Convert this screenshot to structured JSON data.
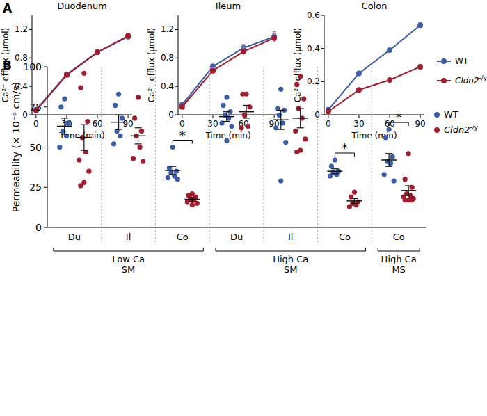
{
  "panel_labels": [
    "A",
    "B"
  ],
  "chart_data": [
    {
      "type": "line",
      "title": "Duodenum",
      "x_label": "Time (min)",
      "y_label": "Ca²⁺ efflux (µmol)",
      "x": [
        0,
        30,
        60,
        90
      ],
      "xlim": [
        -4,
        94
      ],
      "xticks": [
        0,
        30,
        60,
        90
      ],
      "ylim": [
        0,
        1.4
      ],
      "yticks": [
        0,
        0.4,
        0.8,
        1.2
      ],
      "series": [
        {
          "name": "WT",
          "color": "#3b5ca8",
          "marker": "circle",
          "values": [
            0.07,
            0.57,
            0.88,
            1.1
          ],
          "errors": [
            0.02,
            0.03,
            0.03,
            0.04
          ]
        },
        {
          "name": "Cldn2-/y",
          "color": "#a11d2e",
          "marker": "circle",
          "values": [
            0.06,
            0.56,
            0.88,
            1.11
          ],
          "errors": [
            0.02,
            0.03,
            0.04,
            0.04
          ]
        }
      ]
    },
    {
      "type": "line",
      "title": "Ileum",
      "x_label": "Time (min)",
      "y_label": "Ca²⁺ efflux (µmol)",
      "x": [
        0,
        30,
        60,
        90
      ],
      "xlim": [
        -4,
        94
      ],
      "xticks": [
        0,
        30,
        60,
        90
      ],
      "ylim": [
        0,
        1.4
      ],
      "yticks": [
        0,
        0.4,
        0.8,
        1.2
      ],
      "series": [
        {
          "name": "WT",
          "color": "#3b5ca8",
          "marker": "circle",
          "values": [
            0.14,
            0.68,
            0.94,
            1.1
          ],
          "errors": [
            0.02,
            0.05,
            0.05,
            0.07
          ]
        },
        {
          "name": "Cldn2-/y",
          "color": "#a11d2e",
          "marker": "circle",
          "values": [
            0.11,
            0.62,
            0.89,
            1.08
          ],
          "errors": [
            0.02,
            0.04,
            0.06,
            0.06
          ]
        }
      ]
    },
    {
      "type": "line",
      "title": "Colon",
      "x_label": "Time (min)",
      "y_label": "Ca²⁺ efflux (µmol)",
      "x": [
        0,
        30,
        60,
        90
      ],
      "xlim": [
        -4,
        94
      ],
      "xticks": [
        0,
        30,
        60,
        90
      ],
      "ylim": [
        0,
        0.6
      ],
      "yticks": [
        0,
        0.2,
        0.4,
        0.6
      ],
      "legend": "right",
      "series": [
        {
          "name": "WT",
          "color": "#3b5ca8",
          "marker": "circle",
          "values": [
            0.03,
            0.25,
            0.39,
            0.54
          ],
          "errors": [
            0.005,
            0.008,
            0.01,
            0.015
          ]
        },
        {
          "name": "Cldn2-/y",
          "color": "#a11d2e",
          "marker": "circle",
          "values": [
            0.02,
            0.15,
            0.21,
            0.29
          ],
          "errors": [
            0.005,
            0.008,
            0.01,
            0.012
          ]
        }
      ]
    },
    {
      "type": "dot_plot",
      "y_label": "Permeability (× 10⁻⁶ cm/s)",
      "categories": [
        "Du",
        "Il",
        "Co",
        "Du",
        "Il",
        "Co",
        "Co"
      ],
      "category_groups": [
        {
          "label": [
            "Low Ca",
            "SM"
          ],
          "from": 0,
          "to": 2
        },
        {
          "label": [
            "High Ca",
            "SM"
          ],
          "from": 3,
          "to": 5
        },
        {
          "label": [
            "High Ca",
            "MS"
          ],
          "from": 6,
          "to": 6
        }
      ],
      "ylim": [
        0,
        100
      ],
      "yticks": [
        0,
        25,
        50,
        75,
        100
      ],
      "legend": "right",
      "annotations": [
        {
          "category": 2,
          "text": "*"
        },
        {
          "category": 5,
          "text": "*"
        },
        {
          "category": 6,
          "text": "*"
        }
      ],
      "series": [
        {
          "name": "WT",
          "color": "#3b5ca8",
          "marker": "circle",
          "points": [
            [
              80,
              75,
              65,
              60,
              57,
              50
            ],
            [
              83,
              76,
              68,
              60,
              57,
              52
            ],
            [
              50,
              37,
              35,
              34,
              32,
              31,
              30
            ],
            [
              81,
              76,
              72,
              70,
              68,
              65,
              63,
              54
            ],
            [
              86,
              74,
              73,
              70,
              65,
              62,
              53,
              29
            ],
            [
              42,
              38,
              35,
              34,
              33,
              32
            ],
            [
              61,
              56,
              44,
              41,
              40,
              33,
              29
            ]
          ],
          "means": [
            63,
            65.5,
            35.5,
            69,
            67,
            35,
            42
          ],
          "sems": [
            5,
            4.5,
            2.5,
            3,
            6,
            1.5,
            4
          ]
        },
        {
          "name": "Cldn2-/y",
          "color": "#a11d2e",
          "marker": "circle",
          "points": [
            [
              96,
              87,
              66,
              56,
              47,
              42,
              35,
              28,
              26
            ],
            [
              81,
              68,
              60,
              57,
              50,
              43,
              41
            ],
            [
              21,
              20,
              19,
              18,
              17,
              16,
              15,
              14
            ],
            [
              83,
              83,
              75,
              70,
              63,
              62
            ],
            [
              94,
              89,
              80,
              74,
              68,
              60,
              55,
              48,
              47
            ],
            [
              22,
              19,
              16,
              15,
              14,
              13
            ],
            [
              46,
              30,
              25,
              21,
              20,
              19,
              18,
              17,
              17,
              17
            ]
          ],
          "means": [
            56,
            57,
            17.5,
            72,
            68,
            16.5,
            23
          ],
          "sems": [
            8,
            5,
            1.3,
            4,
            6,
            1.5,
            3
          ]
        }
      ]
    }
  ]
}
